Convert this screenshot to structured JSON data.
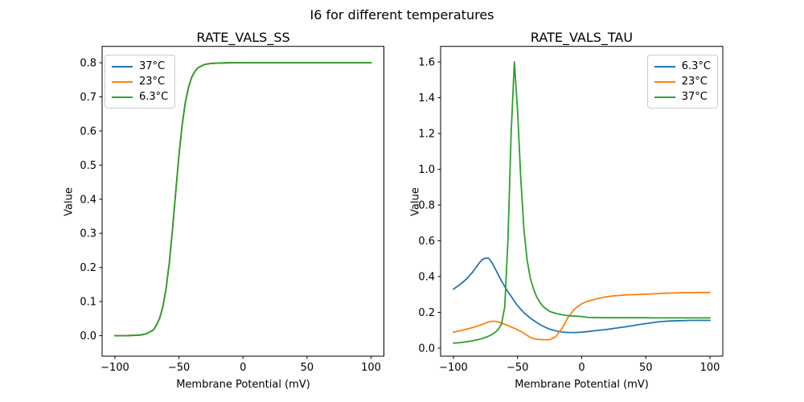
{
  "figure": {
    "suptitle": "I6 for different temperatures",
    "background": "#ffffff",
    "text_color": "#000000",
    "spine_color": "#000000"
  },
  "chart_data": [
    {
      "type": "line",
      "title": "RATE_VALS_SS",
      "xlabel": "Membrane Potential (mV)",
      "ylabel": "Value",
      "grid": false,
      "legend_position": "upper-left",
      "xlim": [
        -110,
        110
      ],
      "ylim": [
        -0.06,
        0.848
      ],
      "xticks": {
        "pos": [
          -100,
          -50,
          0,
          50,
          100
        ],
        "labels": [
          "−100",
          "−50",
          "0",
          "50",
          "100"
        ]
      },
      "yticks": {
        "pos": [
          0.0,
          0.1,
          0.2,
          0.3,
          0.4,
          0.5,
          0.6,
          0.7,
          0.8
        ],
        "labels": [
          "0.0",
          "0.1",
          "0.2",
          "0.3",
          "0.4",
          "0.5",
          "0.6",
          "0.7",
          "0.8"
        ]
      },
      "note": "All three temperature curves coincide exactly (sigmoid from 0 to 0.8, midpoint near -53 mV); green drawn last so only it is visible.",
      "x": [
        -100,
        -90,
        -80,
        -75,
        -70,
        -67.5,
        -65,
        -62.5,
        -60,
        -57.5,
        -55,
        -52.5,
        -50,
        -47.5,
        -45,
        -42.5,
        -40,
        -37.5,
        -35,
        -30,
        -25,
        -20,
        -10,
        0,
        10,
        20,
        40,
        60,
        80,
        100
      ],
      "series": [
        {
          "name": "37°C",
          "color": "#1f77b4",
          "values": [
            0,
            0.0002,
            0.002,
            0.006,
            0.017,
            0.031,
            0.052,
            0.086,
            0.139,
            0.215,
            0.313,
            0.422,
            0.529,
            0.618,
            0.684,
            0.729,
            0.758,
            0.775,
            0.786,
            0.795,
            0.798,
            0.799,
            0.8,
            0.8,
            0.8,
            0.8,
            0.8,
            0.8,
            0.8,
            0.8
          ]
        },
        {
          "name": "23°C",
          "color": "#ff7f0e",
          "values": [
            0,
            0.0002,
            0.002,
            0.006,
            0.017,
            0.031,
            0.052,
            0.086,
            0.139,
            0.215,
            0.313,
            0.422,
            0.529,
            0.618,
            0.684,
            0.729,
            0.758,
            0.775,
            0.786,
            0.795,
            0.798,
            0.799,
            0.8,
            0.8,
            0.8,
            0.8,
            0.8,
            0.8,
            0.8,
            0.8
          ]
        },
        {
          "name": "6.3°C",
          "color": "#2ca02c",
          "values": [
            0,
            0.0002,
            0.002,
            0.006,
            0.017,
            0.031,
            0.052,
            0.086,
            0.139,
            0.215,
            0.313,
            0.422,
            0.529,
            0.618,
            0.684,
            0.729,
            0.758,
            0.775,
            0.786,
            0.795,
            0.798,
            0.799,
            0.8,
            0.8,
            0.8,
            0.8,
            0.8,
            0.8,
            0.8,
            0.8
          ]
        }
      ]
    },
    {
      "type": "line",
      "title": "RATE_VALS_TAU",
      "xlabel": "Membrane Potential (mV)",
      "ylabel": "Value",
      "grid": false,
      "legend_position": "upper-right",
      "xlim": [
        -110,
        110
      ],
      "ylim": [
        -0.045,
        1.687
      ],
      "xticks": {
        "pos": [
          -100,
          -50,
          0,
          50,
          100
        ],
        "labels": [
          "−100",
          "−50",
          "0",
          "50",
          "100"
        ]
      },
      "yticks": {
        "pos": [
          0.0,
          0.2,
          0.4,
          0.6,
          0.8,
          1.0,
          1.2,
          1.4,
          1.6
        ],
        "labels": [
          "0.0",
          "0.2",
          "0.4",
          "0.6",
          "0.8",
          "1.0",
          "1.2",
          "1.4",
          "1.6"
        ]
      },
      "note": "Blue peaks at 0.50 near -75 mV; orange has small bump 0.15 near -71, min 0.047 near -30, plateau 0.31; green spikes to 1.6 near -53 then settles at 0.17.",
      "x": [
        -100,
        -97.5,
        -95,
        -92.5,
        -90,
        -87.5,
        -85,
        -82.5,
        -80,
        -77.5,
        -75,
        -72.5,
        -70,
        -67.5,
        -65,
        -62.5,
        -60,
        -57.5,
        -55,
        -52.5,
        -50,
        -47.5,
        -45,
        -42.5,
        -40,
        -37.5,
        -35,
        -32.5,
        -30,
        -25,
        -20,
        -15,
        -10,
        -5,
        0,
        5,
        10,
        15,
        20,
        25,
        30,
        35,
        40,
        45,
        50,
        55,
        60,
        65,
        70,
        75,
        80,
        85,
        90,
        95,
        100
      ],
      "series": [
        {
          "name": "6.3°C",
          "color": "#1f77b4",
          "values": [
            0.33,
            0.342,
            0.355,
            0.37,
            0.385,
            0.405,
            0.425,
            0.45,
            0.475,
            0.495,
            0.503,
            0.503,
            0.478,
            0.445,
            0.41,
            0.375,
            0.345,
            0.315,
            0.29,
            0.262,
            0.238,
            0.217,
            0.198,
            0.182,
            0.168,
            0.155,
            0.143,
            0.132,
            0.122,
            0.106,
            0.096,
            0.09,
            0.087,
            0.087,
            0.089,
            0.093,
            0.097,
            0.101,
            0.105,
            0.11,
            0.115,
            0.12,
            0.126,
            0.132,
            0.137,
            0.142,
            0.147,
            0.15,
            0.152,
            0.153,
            0.154,
            0.155,
            0.155,
            0.155,
            0.155
          ]
        },
        {
          "name": "23°C",
          "color": "#ff7f0e",
          "values": [
            0.089,
            0.093,
            0.097,
            0.101,
            0.105,
            0.11,
            0.115,
            0.12,
            0.126,
            0.133,
            0.14,
            0.147,
            0.15,
            0.15,
            0.146,
            0.14,
            0.133,
            0.126,
            0.118,
            0.111,
            0.103,
            0.094,
            0.083,
            0.071,
            0.06,
            0.053,
            0.05,
            0.048,
            0.047,
            0.047,
            0.065,
            0.115,
            0.18,
            0.222,
            0.248,
            0.263,
            0.273,
            0.281,
            0.288,
            0.292,
            0.295,
            0.298,
            0.299,
            0.3,
            0.302,
            0.303,
            0.305,
            0.307,
            0.308,
            0.309,
            0.31,
            0.31,
            0.311,
            0.311,
            0.311
          ]
        },
        {
          "name": "37°C",
          "color": "#2ca02c",
          "values": [
            0.028,
            0.029,
            0.031,
            0.033,
            0.035,
            0.038,
            0.041,
            0.045,
            0.049,
            0.054,
            0.06,
            0.067,
            0.076,
            0.088,
            0.105,
            0.135,
            0.23,
            0.6,
            1.2,
            1.6,
            1.33,
            0.95,
            0.66,
            0.49,
            0.39,
            0.33,
            0.285,
            0.255,
            0.232,
            0.205,
            0.194,
            0.186,
            0.181,
            0.179,
            0.177,
            0.172,
            0.171,
            0.17,
            0.17,
            0.17,
            0.17,
            0.17,
            0.17,
            0.17,
            0.17,
            0.169,
            0.169,
            0.169,
            0.169,
            0.169,
            0.169,
            0.169,
            0.169,
            0.169,
            0.169
          ]
        }
      ]
    }
  ]
}
